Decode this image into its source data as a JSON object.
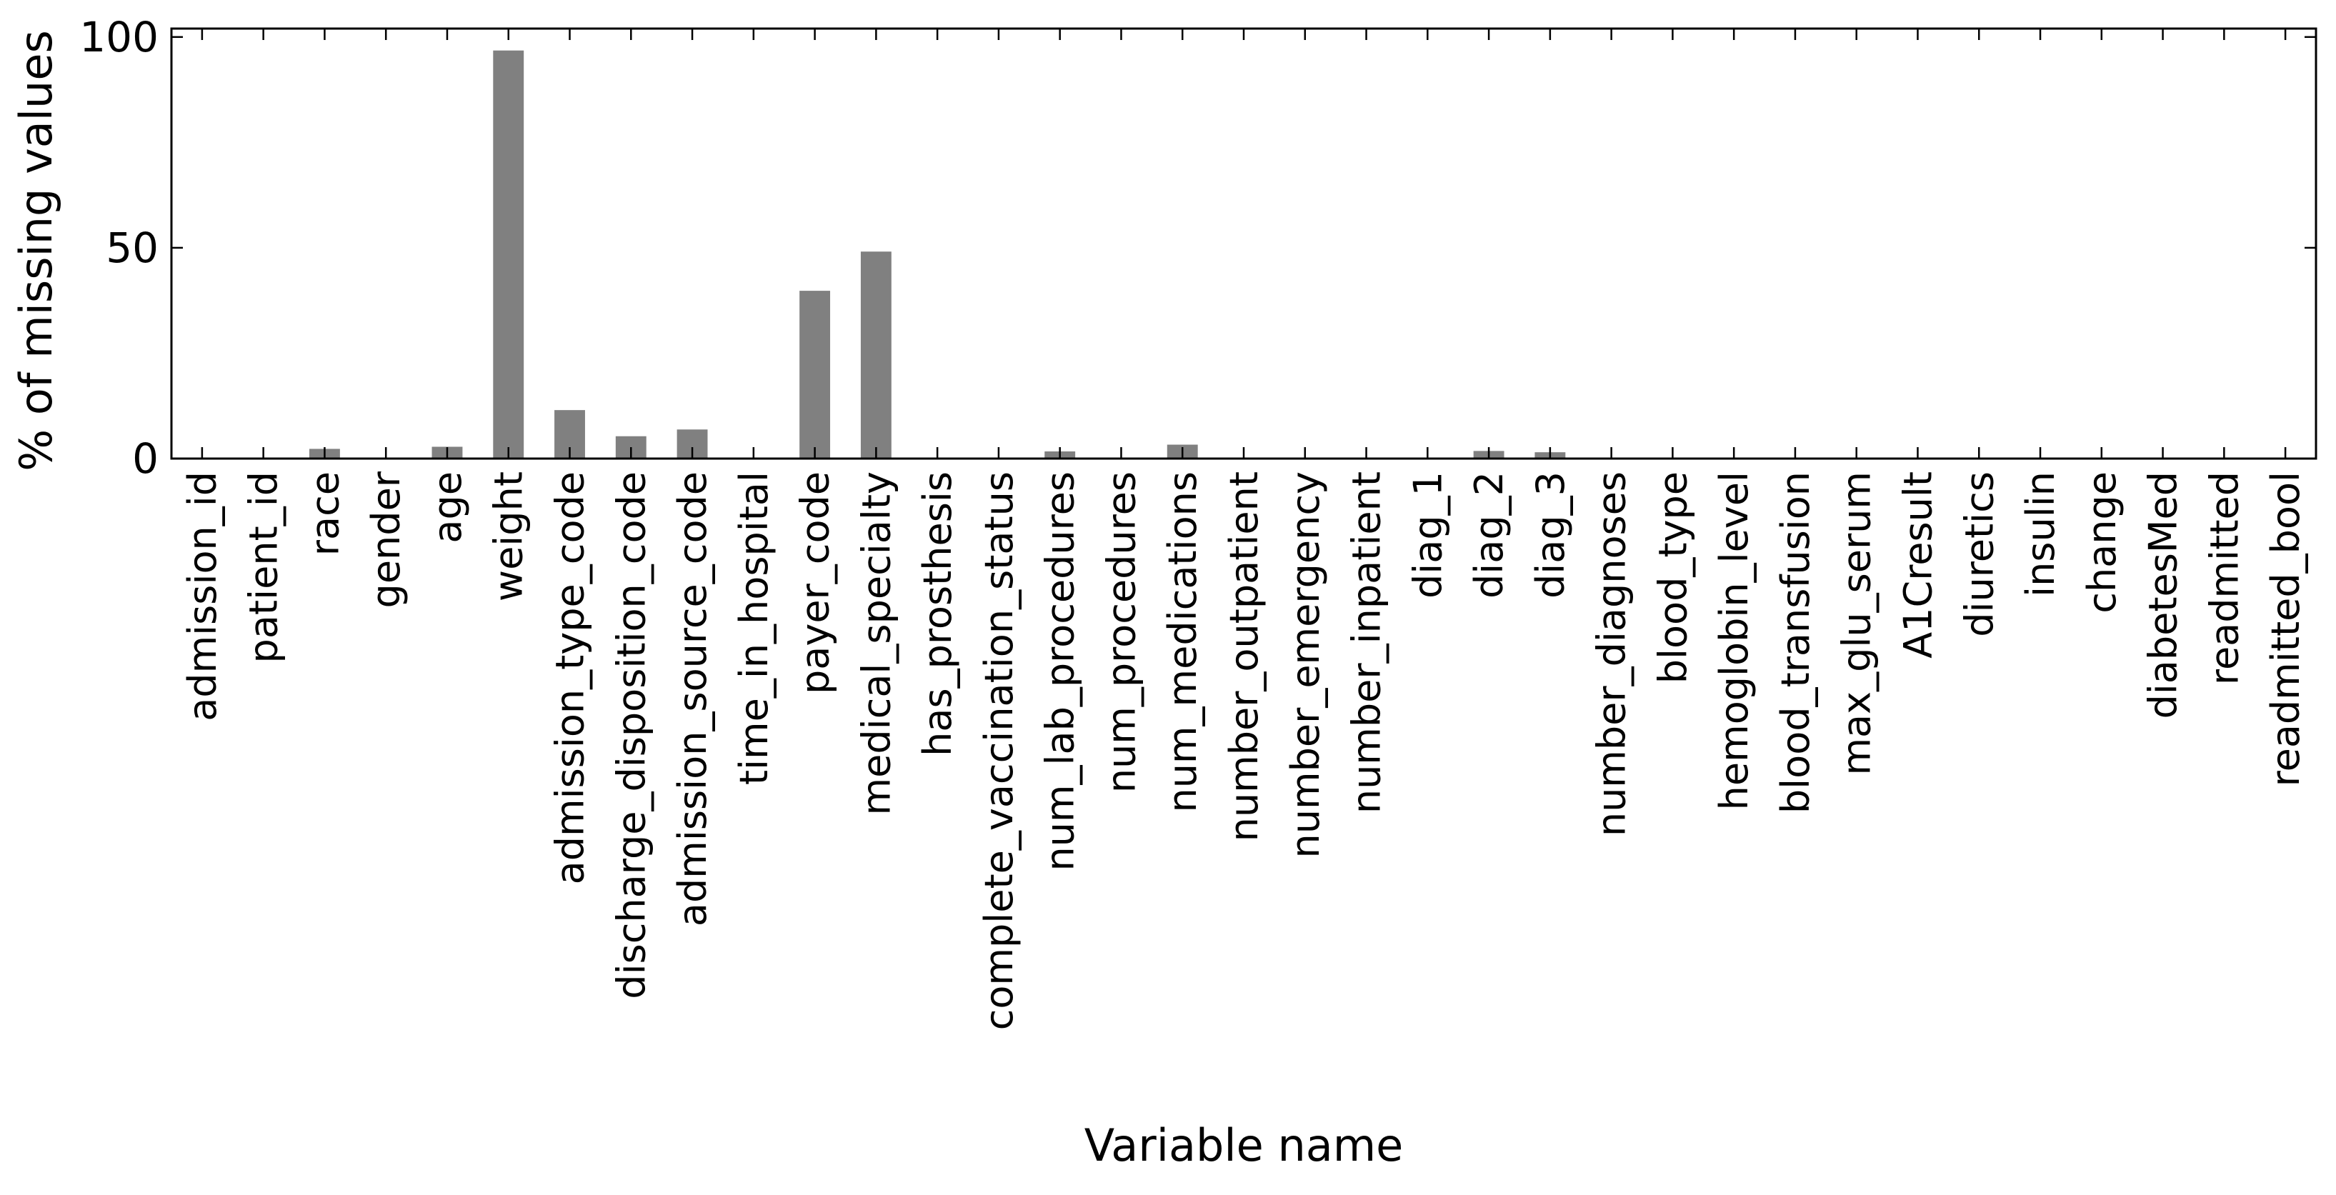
{
  "chart_data": {
    "type": "bar",
    "title": "",
    "xlabel": "Variable name",
    "ylabel": "% of missing values",
    "ylim": [
      0,
      102
    ],
    "yticks": [
      0,
      50,
      100
    ],
    "grid": false,
    "legend": "none",
    "bar_color": "#808080",
    "categories": [
      "admission_id",
      "patient_id",
      "race",
      "gender",
      "age",
      "weight",
      "admission_type_code",
      "discharge_disposition_code",
      "admission_source_code",
      "time_in_hospital",
      "payer_code",
      "medical_specialty",
      "has_prosthesis",
      "complete_vaccination_status",
      "num_lab_procedures",
      "num_procedures",
      "num_medications",
      "number_outpatient",
      "number_emergency",
      "number_inpatient",
      "diag_1",
      "diag_2",
      "diag_3",
      "number_diagnoses",
      "blood_type",
      "hemoglobin_level",
      "blood_transfusion",
      "max_glu_serum",
      "A1Cresult",
      "diuretics",
      "insulin",
      "change",
      "diabetesMed",
      "readmitted",
      "readmitted_bool"
    ],
    "values": [
      0,
      0,
      2.3,
      0,
      2.8,
      96.8,
      11.5,
      5.3,
      6.9,
      0,
      39.8,
      49.1,
      0,
      0,
      1.7,
      0,
      3.3,
      0,
      0,
      0,
      0,
      1.8,
      1.5,
      0,
      0,
      0,
      0,
      0,
      0,
      0,
      0,
      0,
      0,
      0,
      0
    ]
  }
}
